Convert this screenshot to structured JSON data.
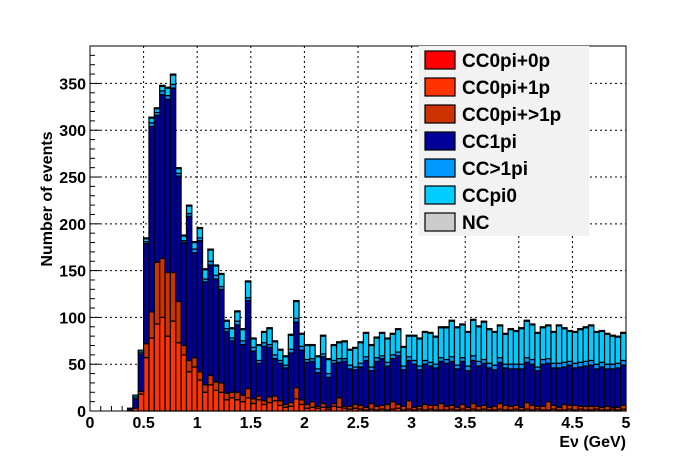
{
  "chart_data": {
    "type": "bar",
    "stacked": true,
    "grid": true,
    "legend_position": "top-right",
    "xlabel": "Eν (GeV)",
    "ylabel": "Number of events",
    "xlim": [
      0,
      5
    ],
    "ylim": [
      0,
      390
    ],
    "xticks": [
      "0",
      "0.5",
      "1",
      "1.5",
      "2",
      "2.5",
      "3",
      "3.5",
      "4",
      "4.5",
      "5"
    ],
    "yticks": [
      "0",
      "50",
      "100",
      "150",
      "200",
      "250",
      "300",
      "350"
    ],
    "bin_width": 0.05,
    "x_bin_centers": [
      0.025,
      0.075,
      0.125,
      0.175,
      0.225,
      0.275,
      0.325,
      0.375,
      0.425,
      0.475,
      0.525,
      0.575,
      0.625,
      0.675,
      0.725,
      0.775,
      0.825,
      0.875,
      0.925,
      0.975,
      1.025,
      1.075,
      1.125,
      1.175,
      1.225,
      1.275,
      1.325,
      1.375,
      1.425,
      1.475,
      1.525,
      1.575,
      1.625,
      1.675,
      1.725,
      1.775,
      1.825,
      1.875,
      1.925,
      1.975,
      2.025,
      2.075,
      2.125,
      2.175,
      2.225,
      2.275,
      2.325,
      2.375,
      2.425,
      2.475,
      2.525,
      2.575,
      2.625,
      2.675,
      2.725,
      2.775,
      2.825,
      2.875,
      2.925,
      2.975,
      3.025,
      3.075,
      3.125,
      3.175,
      3.225,
      3.275,
      3.325,
      3.375,
      3.425,
      3.475,
      3.525,
      3.575,
      3.625,
      3.675,
      3.725,
      3.775,
      3.825,
      3.875,
      3.925,
      3.975,
      4.025,
      4.075,
      4.125,
      4.175,
      4.225,
      4.275,
      4.325,
      4.375,
      4.425,
      4.475,
      4.525,
      4.575,
      4.625,
      4.675,
      4.725,
      4.775,
      4.825,
      4.875,
      4.925,
      4.975
    ],
    "series": [
      {
        "name": "CC0pi+0p",
        "color": "#ff0000",
        "values": [
          0,
          0,
          0,
          0,
          0,
          0,
          0,
          0,
          0,
          0,
          0,
          0,
          0,
          0,
          0,
          0,
          0,
          0,
          0,
          0,
          0,
          0,
          0,
          0,
          0,
          0,
          0,
          0,
          0,
          0,
          0,
          0,
          0,
          0,
          0,
          0,
          0,
          0,
          0,
          0,
          0,
          0,
          0,
          0,
          0,
          0,
          0,
          0,
          0,
          0,
          0,
          0,
          0,
          0,
          0,
          0,
          0,
          0,
          0,
          0,
          0,
          0,
          0,
          0,
          0,
          0,
          0,
          0,
          0,
          0,
          0,
          0,
          0,
          0,
          0,
          0,
          0,
          0,
          0,
          0,
          0,
          0,
          0,
          0,
          0,
          0,
          0,
          0,
          0,
          0,
          0,
          0,
          0,
          0,
          0,
          0,
          0,
          0,
          0,
          0
        ]
      },
      {
        "name": "CC0pi+1p",
        "color": "#ff3300",
        "values": [
          0,
          0,
          0,
          0,
          0,
          0,
          0,
          1,
          3,
          18,
          57,
          78,
          93,
          100,
          80,
          96,
          73,
          60,
          42,
          47,
          33,
          20,
          28,
          22,
          20,
          12,
          14,
          12,
          10,
          14,
          8,
          12,
          7,
          9,
          11,
          6,
          4,
          5,
          13,
          7,
          3,
          4,
          3,
          4,
          2,
          5,
          4,
          3,
          2,
          3,
          2,
          1,
          2,
          1,
          2,
          1,
          2,
          3,
          1,
          2,
          1,
          2,
          1,
          2,
          1,
          1,
          1,
          2,
          1,
          2,
          1,
          2,
          1,
          2,
          1,
          1,
          2,
          1,
          1,
          2,
          1,
          2,
          1,
          2,
          1,
          1,
          2,
          1,
          1,
          2,
          1,
          2,
          1,
          1,
          2,
          1,
          1,
          2,
          1,
          2
        ]
      },
      {
        "name": "CC0pi+>1p",
        "color": "#cc3300",
        "values": [
          0,
          0,
          0,
          0,
          0,
          0,
          0,
          0,
          0,
          3,
          15,
          28,
          66,
          63,
          68,
          52,
          44,
          10,
          12,
          10,
          9,
          8,
          10,
          9,
          10,
          7,
          6,
          8,
          7,
          10,
          5,
          4,
          4,
          6,
          5,
          5,
          3,
          4,
          12,
          5,
          4,
          6,
          2,
          4,
          2,
          3,
          10,
          2,
          3,
          4,
          4,
          3,
          6,
          4,
          4,
          6,
          8,
          4,
          4,
          9,
          3,
          3,
          6,
          4,
          5,
          7,
          4,
          4,
          3,
          5,
          3,
          6,
          4,
          4,
          3,
          4,
          6,
          5,
          4,
          4,
          3,
          7,
          5,
          3,
          4,
          9,
          4,
          3,
          6,
          4,
          5,
          3,
          4,
          4,
          3,
          3,
          4,
          2,
          3,
          4
        ]
      },
      {
        "name": "CC1pi",
        "color": "#000099",
        "values": [
          0,
          0,
          0,
          0,
          0,
          0,
          0,
          2,
          10,
          40,
          107,
          198,
          157,
          175,
          185,
          197,
          134,
          110,
          154,
          112,
          140,
          110,
          118,
          110,
          100,
          66,
          55,
          72,
          54,
          94,
          51,
          35,
          58,
          53,
          40,
          40,
          39,
          53,
          70,
          53,
          45,
          43,
          36,
          50,
          32,
          43,
          38,
          48,
          40,
          37,
          41,
          50,
          35,
          48,
          50,
          41,
          46,
          52,
          39,
          43,
          46,
          39,
          43,
          42,
          40,
          45,
          46,
          47,
          41,
          46,
          39,
          46,
          43,
          45,
          42,
          39,
          44,
          40,
          40,
          39,
          41,
          43,
          44,
          38,
          45,
          41,
          40,
          42,
          40,
          43,
          40,
          42,
          43,
          44,
          40,
          43,
          40,
          41,
          42,
          43
        ]
      },
      {
        "name": "CC>1pi",
        "color": "#0099ff",
        "values": [
          0,
          0,
          0,
          0,
          0,
          0,
          0,
          0,
          2,
          2,
          2,
          4,
          3,
          4,
          4,
          4,
          3,
          2,
          3,
          4,
          3,
          3,
          4,
          4,
          3,
          3,
          3,
          4,
          4,
          3,
          4,
          3,
          4,
          3,
          4,
          3,
          3,
          4,
          4,
          4,
          3,
          3,
          4,
          3,
          4,
          3,
          4,
          3,
          4,
          3,
          4,
          4,
          4,
          4,
          3,
          4,
          4,
          4,
          4,
          4,
          4,
          4,
          4,
          4,
          4,
          4,
          4,
          5,
          4,
          4,
          5,
          5,
          5,
          4,
          5,
          5,
          5,
          4,
          5,
          5,
          5,
          5,
          5,
          4,
          5,
          5,
          5,
          5,
          5,
          4,
          5,
          5,
          5,
          5,
          5,
          5,
          5,
          5,
          5,
          5
        ]
      },
      {
        "name": "CCpi0",
        "color": "#00ccff",
        "values": [
          0,
          0,
          0,
          0,
          0,
          0,
          0,
          0,
          2,
          2,
          3,
          5,
          4,
          5,
          8,
          10,
          5,
          5,
          8,
          7,
          10,
          10,
          12,
          10,
          13,
          8,
          10,
          10,
          12,
          17,
          9,
          16,
          11,
          17,
          14,
          11,
          9,
          15,
          18,
          13,
          15,
          14,
          13,
          19,
          15,
          16,
          17,
          18,
          16,
          20,
          22,
          25,
          23,
          21,
          24,
          25,
          22,
          24,
          20,
          22,
          26,
          29,
          30,
          31,
          29,
          32,
          34,
          38,
          40,
          35,
          36,
          38,
          37,
          40,
          36,
          35,
          34,
          32,
          37,
          35,
          38,
          39,
          37,
          36,
          34,
          35,
          33,
          40,
          36,
          32,
          33,
          35,
          36,
          37,
          34,
          33,
          32,
          30,
          28,
          29
        ]
      },
      {
        "name": "NC",
        "color": "#cccccc",
        "values": [
          0,
          0,
          0,
          0,
          0,
          0,
          0,
          0,
          0,
          0,
          1,
          1,
          1,
          1,
          1,
          1,
          1,
          1,
          1,
          1,
          1,
          1,
          1,
          1,
          1,
          1,
          1,
          1,
          1,
          1,
          1,
          1,
          1,
          1,
          1,
          1,
          1,
          1,
          1,
          1,
          1,
          1,
          1,
          1,
          1,
          1,
          1,
          1,
          1,
          1,
          1,
          1,
          1,
          1,
          1,
          1,
          1,
          1,
          1,
          1,
          1,
          1,
          1,
          1,
          1,
          1,
          1,
          1,
          1,
          1,
          1,
          1,
          1,
          1,
          1,
          1,
          1,
          1,
          1,
          1,
          1,
          1,
          1,
          1,
          1,
          1,
          1,
          1,
          1,
          1,
          1,
          1,
          1,
          1,
          1,
          1,
          1,
          1,
          1,
          1
        ]
      }
    ]
  }
}
